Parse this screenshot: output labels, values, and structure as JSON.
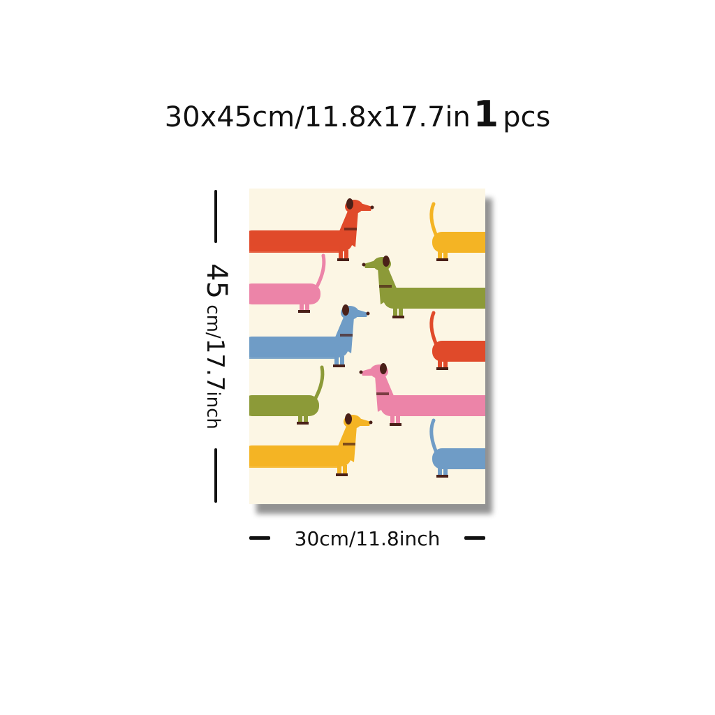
{
  "header": {
    "size_text": "30x45cm/11.8x17.7in",
    "quantity": "1",
    "quantity_unit": "pcs"
  },
  "dimensions": {
    "height_value": "45",
    "height_unit": "cm/",
    "height_inches": "17.7",
    "height_inch_unit": "inch",
    "width_label": "30cm/11.8inch"
  },
  "artwork": {
    "subject": "dachshund pattern",
    "background_color": "#fcf6e4",
    "colors": {
      "red": "#e04a2a",
      "pink": "#ec84a8",
      "olive": "#8c9a38",
      "blue": "#6f9cc6",
      "yellow": "#f4b424",
      "dark": "#4a2018"
    }
  }
}
